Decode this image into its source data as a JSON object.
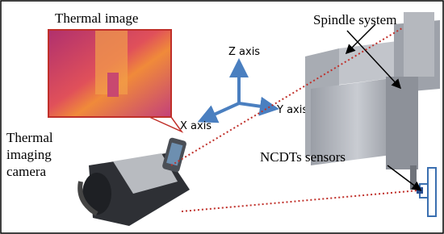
{
  "labels": {
    "thermal_image": "Thermal image",
    "spindle_system": "Spindle system",
    "z_axis": "Z axis",
    "x_axis": "X axis",
    "y_axis": "Y axis",
    "camera": [
      "Thermal",
      "imaging",
      "camera"
    ],
    "ncdt_sensors": "NCDTs sensors"
  }
}
